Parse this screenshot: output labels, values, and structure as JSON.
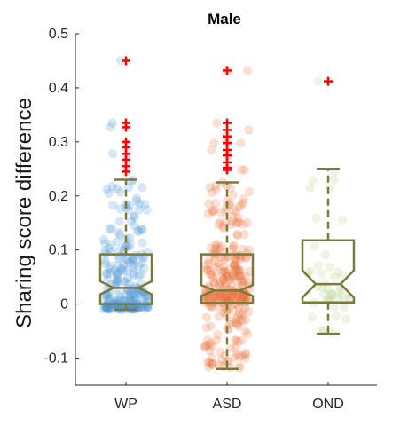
{
  "chart_data": {
    "type": "box",
    "title": "Male",
    "xlabel": "",
    "ylabel": "Sharing score difference",
    "ylim": [
      -0.15,
      0.5
    ],
    "yticks": [
      -0.1,
      0,
      0.1,
      0.2,
      0.3,
      0.4,
      0.5
    ],
    "ytick_labels": [
      "-0.1",
      "0",
      "0.1",
      "0.2",
      "0.3",
      "0.4",
      "0.5"
    ],
    "categories": [
      "WP",
      "ASD",
      "OND"
    ],
    "box_color": "#7a7a3a",
    "outlier_color": "#ff0000",
    "series": [
      {
        "name": "WP",
        "point_color": "#4a90d0",
        "n_points": 220,
        "q1": 0.0,
        "median": 0.03,
        "q3": 0.092,
        "notch_low": 0.018,
        "notch_high": 0.042,
        "whisker_low": -0.01,
        "whisker_high": 0.23,
        "outliers": [
          0.45,
          0.335,
          0.327,
          0.3,
          0.29,
          0.278,
          0.267,
          0.255,
          0.245
        ]
      },
      {
        "name": "ASD",
        "point_color": "#e8743b",
        "n_points": 320,
        "q1": 0.002,
        "median": 0.025,
        "q3": 0.092,
        "notch_low": 0.015,
        "notch_high": 0.035,
        "whisker_low": -0.12,
        "whisker_high": 0.225,
        "outliers": [
          0.432,
          0.335,
          0.322,
          0.31,
          0.298,
          0.285,
          0.275,
          0.262,
          0.252,
          0.248
        ]
      },
      {
        "name": "OND",
        "point_color": "#b7d38a",
        "n_points": 45,
        "q1": 0.003,
        "median": 0.037,
        "q3": 0.118,
        "notch_low": 0.012,
        "notch_high": 0.062,
        "whisker_low": -0.055,
        "whisker_high": 0.25,
        "outliers": [
          0.412
        ]
      }
    ]
  }
}
